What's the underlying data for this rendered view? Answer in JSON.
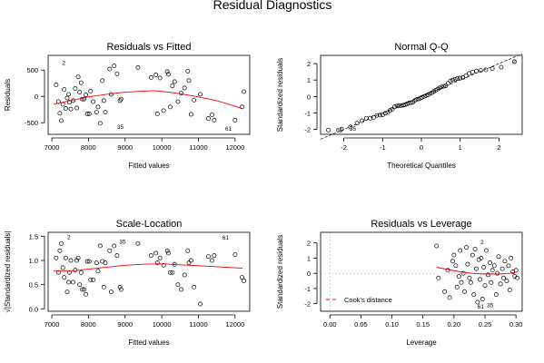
{
  "figure": {
    "title": "Residual Diagnostics"
  },
  "chart_data": [
    {
      "type": "scatter",
      "title": "Residuals vs Fitted",
      "xlabel": "Fitted values",
      "ylabel": "Residuals",
      "xlim": [
        6900,
        12400
      ],
      "ylim": [
        -720,
        780
      ],
      "xticks": [
        7000,
        8000,
        9000,
        10000,
        11000,
        12000
      ],
      "xticklabels": [
        "7000",
        "8000",
        "9000",
        "10000",
        "11000",
        "12000"
      ],
      "yticks": [
        -500,
        0,
        500
      ],
      "yticklabels": [
        "-500",
        "0",
        "500"
      ],
      "points": [
        [
          7120,
          220
        ],
        [
          7180,
          -100
        ],
        [
          7220,
          -320
        ],
        [
          7260,
          -460
        ],
        [
          7300,
          -150
        ],
        [
          7340,
          130
        ],
        [
          7380,
          -230
        ],
        [
          7420,
          -30
        ],
        [
          7460,
          40
        ],
        [
          7480,
          -110
        ],
        [
          7520,
          -240
        ],
        [
          7580,
          -80
        ],
        [
          7640,
          150
        ],
        [
          7680,
          -220
        ],
        [
          7720,
          370
        ],
        [
          7760,
          80
        ],
        [
          7800,
          260
        ],
        [
          7830,
          -50
        ],
        [
          7880,
          -50
        ],
        [
          7930,
          30
        ],
        [
          7970,
          -330
        ],
        [
          8020,
          -330
        ],
        [
          8060,
          100
        ],
        [
          8130,
          -100
        ],
        [
          8220,
          -300
        ],
        [
          8260,
          -200
        ],
        [
          8320,
          -510
        ],
        [
          8380,
          300
        ],
        [
          8420,
          -80
        ],
        [
          8460,
          -300
        ],
        [
          8580,
          520
        ],
        [
          8620,
          40
        ],
        [
          8700,
          580
        ],
        [
          8780,
          430
        ],
        [
          8860,
          -80
        ],
        [
          8890,
          -50
        ],
        [
          9350,
          550
        ],
        [
          9710,
          360
        ],
        [
          9840,
          410
        ],
        [
          9880,
          -330
        ],
        [
          9950,
          350
        ],
        [
          10050,
          -270
        ],
        [
          10150,
          470
        ],
        [
          10180,
          420
        ],
        [
          10230,
          -200
        ],
        [
          10290,
          200
        ],
        [
          10350,
          280
        ],
        [
          10440,
          -100
        ],
        [
          10530,
          60
        ],
        [
          10620,
          160
        ],
        [
          10710,
          480
        ],
        [
          10740,
          300
        ],
        [
          10800,
          -340
        ],
        [
          10880,
          -70
        ],
        [
          11050,
          40
        ],
        [
          11270,
          -420
        ],
        [
          11370,
          -350
        ],
        [
          11430,
          -450
        ],
        [
          12000,
          -450
        ],
        [
          12190,
          -200
        ],
        [
          12240,
          90
        ]
      ],
      "annotations": [
        {
          "label": "2",
          "x": 7230,
          "y": 630
        },
        {
          "label": "35",
          "x": 8730,
          "y": -580
        },
        {
          "label": "61",
          "x": 11680,
          "y": -620
        }
      ],
      "smooth": [
        [
          7050,
          -150
        ],
        [
          7500,
          -80
        ],
        [
          8000,
          -10
        ],
        [
          8500,
          40
        ],
        [
          9000,
          80
        ],
        [
          9500,
          100
        ],
        [
          9800,
          110
        ],
        [
          10200,
          80
        ],
        [
          10600,
          40
        ],
        [
          11000,
          -10
        ],
        [
          11500,
          -80
        ],
        [
          12200,
          -230
        ]
      ]
    },
    {
      "type": "scatter",
      "title": "Normal Q-Q",
      "xlabel": "Theoretical Quantiles",
      "ylabel": "Standardized residuals",
      "xlim": [
        -2.6,
        2.6
      ],
      "ylim": [
        -2.3,
        2.5
      ],
      "xticks": [
        -2,
        -1,
        0,
        1,
        2
      ],
      "xticklabels": [
        "-2",
        "-1",
        "0",
        "1",
        "2"
      ],
      "yticks": [
        -2,
        -1,
        0,
        1,
        2
      ],
      "yticklabels": [
        "-2",
        "-1",
        "0",
        "1",
        "2"
      ],
      "points": [
        [
          -2.4,
          -2.04
        ],
        [
          -2.06,
          -1.98
        ],
        [
          -1.83,
          -1.85
        ],
        [
          -1.66,
          -1.62
        ],
        [
          -1.53,
          -1.47
        ],
        [
          -1.42,
          -1.33
        ],
        [
          -1.32,
          -1.32
        ],
        [
          -1.23,
          -1.27
        ],
        [
          -1.15,
          -1.15
        ],
        [
          -1.07,
          -1.13
        ],
        [
          -1.0,
          -1.12
        ],
        [
          -0.93,
          -1.02
        ],
        [
          -0.87,
          -0.98
        ],
        [
          -0.81,
          -0.85
        ],
        [
          -0.75,
          -0.78
        ],
        [
          -0.69,
          -0.63
        ],
        [
          -0.63,
          -0.58
        ],
        [
          -0.58,
          -0.57
        ],
        [
          -0.52,
          -0.55
        ],
        [
          -0.47,
          -0.53
        ],
        [
          -0.42,
          -0.5
        ],
        [
          -0.37,
          -0.45
        ],
        [
          -0.32,
          -0.4
        ],
        [
          -0.27,
          -0.38
        ],
        [
          -0.22,
          -0.35
        ],
        [
          -0.17,
          -0.25
        ],
        [
          -0.12,
          -0.18
        ],
        [
          -0.07,
          -0.15
        ],
        [
          -0.02,
          -0.1
        ],
        [
          0.02,
          -0.05
        ],
        [
          0.07,
          0.0
        ],
        [
          0.12,
          0.05
        ],
        [
          0.17,
          0.1
        ],
        [
          0.22,
          0.18
        ],
        [
          0.27,
          0.22
        ],
        [
          0.32,
          0.3
        ],
        [
          0.37,
          0.38
        ],
        [
          0.42,
          0.45
        ],
        [
          0.47,
          0.52
        ],
        [
          0.52,
          0.58
        ],
        [
          0.58,
          0.62
        ],
        [
          0.63,
          0.65
        ],
        [
          0.69,
          0.8
        ],
        [
          0.75,
          0.95
        ],
        [
          0.81,
          1.0
        ],
        [
          0.87,
          1.05
        ],
        [
          0.93,
          1.1
        ],
        [
          1.0,
          1.12
        ],
        [
          1.07,
          1.15
        ],
        [
          1.15,
          1.25
        ],
        [
          1.23,
          1.4
        ],
        [
          1.32,
          1.48
        ],
        [
          1.42,
          1.55
        ],
        [
          1.53,
          1.58
        ],
        [
          1.66,
          1.62
        ],
        [
          1.83,
          1.7
        ],
        [
          2.06,
          1.78
        ],
        [
          2.4,
          2.12
        ]
      ],
      "annotations": [
        {
          "label": "61",
          "x": -2.25,
          "y": -2.05
        },
        {
          "label": "35",
          "x": -1.9,
          "y": -1.97
        },
        {
          "label": "2",
          "x": 2.3,
          "y": 2.12
        }
      ],
      "reference_line": [
        [
          -2.6,
          -2.6
        ],
        [
          2.6,
          2.6
        ]
      ]
    },
    {
      "type": "scatter",
      "title": "Scale-Location",
      "xlabel": "Fitted values",
      "ylabel": "√|Standardized residuals|",
      "xlim": [
        6900,
        12400
      ],
      "ylim": [
        -0.05,
        1.58
      ],
      "xticks": [
        7000,
        8000,
        9000,
        10000,
        11000,
        12000
      ],
      "xticklabels": [
        "7000",
        "8000",
        "9000",
        "10000",
        "11000",
        "12000"
      ],
      "yticks": [
        0.0,
        0.5,
        1.0,
        1.5
      ],
      "yticklabels": [
        "0.0",
        "0.5",
        "1.0",
        "1.5"
      ],
      "points": [
        [
          7120,
          1.05
        ],
        [
          7180,
          0.75
        ],
        [
          7220,
          1.2
        ],
        [
          7260,
          1.35
        ],
        [
          7300,
          0.85
        ],
        [
          7340,
          0.65
        ],
        [
          7380,
          1.05
        ],
        [
          7420,
          0.35
        ],
        [
          7460,
          0.55
        ],
        [
          7480,
          0.75
        ],
        [
          7520,
          1.0
        ],
        [
          7580,
          0.55
        ],
        [
          7640,
          0.8
        ],
        [
          7680,
          1.0
        ],
        [
          7720,
          1.05
        ],
        [
          7760,
          0.5
        ],
        [
          7800,
          0.75
        ],
        [
          7830,
          0.4
        ],
        [
          7880,
          0.4
        ],
        [
          7930,
          0.3
        ],
        [
          7970,
          0.98
        ],
        [
          8020,
          0.98
        ],
        [
          8060,
          0.6
        ],
        [
          8130,
          0.6
        ],
        [
          8220,
          0.95
        ],
        [
          8260,
          0.78
        ],
        [
          8320,
          1.3
        ],
        [
          8380,
          0.98
        ],
        [
          8420,
          0.45
        ],
        [
          8460,
          0.95
        ],
        [
          8580,
          1.2
        ],
        [
          8620,
          0.35
        ],
        [
          8700,
          1.3
        ],
        [
          8780,
          1.1
        ],
        [
          8860,
          0.45
        ],
        [
          8890,
          0.4
        ],
        [
          9350,
          1.35
        ],
        [
          9710,
          1.1
        ],
        [
          9840,
          1.15
        ],
        [
          9880,
          0.95
        ],
        [
          9950,
          1.05
        ],
        [
          10050,
          0.9
        ],
        [
          10150,
          1.2
        ],
        [
          10180,
          1.15
        ],
        [
          10230,
          0.75
        ],
        [
          10290,
          0.75
        ],
        [
          10350,
          0.92
        ],
        [
          10440,
          0.5
        ],
        [
          10530,
          0.4
        ],
        [
          10620,
          0.7
        ],
        [
          10710,
          1.2
        ],
        [
          10740,
          0.95
        ],
        [
          10800,
          1.0
        ],
        [
          10880,
          0.45
        ],
        [
          11050,
          0.1
        ],
        [
          11270,
          1.08
        ],
        [
          11370,
          1.0
        ],
        [
          11430,
          1.1
        ],
        [
          12000,
          1.12
        ],
        [
          12190,
          0.65
        ],
        [
          12240,
          0.58
        ]
      ],
      "annotations": [
        {
          "label": "2",
          "x": 7370,
          "y": 1.48
        },
        {
          "label": "35",
          "x": 8790,
          "y": 1.38
        },
        {
          "label": "61",
          "x": 11600,
          "y": 1.47
        }
      ],
      "smooth": [
        [
          7050,
          0.78
        ],
        [
          7500,
          0.78
        ],
        [
          8000,
          0.82
        ],
        [
          8500,
          0.86
        ],
        [
          9000,
          0.9
        ],
        [
          9500,
          0.92
        ],
        [
          10000,
          0.93
        ],
        [
          10500,
          0.91
        ],
        [
          11000,
          0.89
        ],
        [
          11500,
          0.87
        ],
        [
          12200,
          0.84
        ]
      ]
    },
    {
      "type": "scatter",
      "title": "Residuals vs Leverage",
      "xlabel": "Leverage",
      "ylabel": "Standardized residuals",
      "xlim": [
        -0.015,
        0.31
      ],
      "ylim": [
        -2.5,
        2.7
      ],
      "xticks": [
        0.0,
        0.05,
        0.1,
        0.15,
        0.2,
        0.25,
        0.3
      ],
      "xticklabels": [
        "0.00",
        "0.05",
        "0.10",
        "0.15",
        "0.20",
        "0.25",
        "0.30"
      ],
      "yticks": [
        -2,
        -1,
        0,
        1,
        2
      ],
      "yticklabels": [
        "-2",
        "-1",
        "0",
        "1",
        "2"
      ],
      "points": [
        [
          0.172,
          1.8
        ],
        [
          0.175,
          -0.3
        ],
        [
          0.185,
          -1.2
        ],
        [
          0.19,
          0.2
        ],
        [
          0.193,
          -1.6
        ],
        [
          0.198,
          0.8
        ],
        [
          0.2,
          1.2
        ],
        [
          0.203,
          0.5
        ],
        [
          0.205,
          -0.9
        ],
        [
          0.208,
          -0.2
        ],
        [
          0.21,
          1.5
        ],
        [
          0.212,
          -0.6
        ],
        [
          0.215,
          0.0
        ],
        [
          0.217,
          -1.2
        ],
        [
          0.22,
          1.7
        ],
        [
          0.222,
          0.6
        ],
        [
          0.225,
          -0.3
        ],
        [
          0.227,
          -0.6
        ],
        [
          0.23,
          1.2
        ],
        [
          0.232,
          -1.4
        ],
        [
          0.234,
          1.6
        ],
        [
          0.236,
          0.3
        ],
        [
          0.238,
          -1.9
        ],
        [
          0.24,
          0.9
        ],
        [
          0.242,
          -0.4
        ],
        [
          0.244,
          1.0
        ],
        [
          0.246,
          -1.7
        ],
        [
          0.248,
          0.4
        ],
        [
          0.25,
          -0.8
        ],
        [
          0.252,
          1.5
        ],
        [
          0.255,
          -0.1
        ],
        [
          0.258,
          0.7
        ],
        [
          0.26,
          -0.6
        ],
        [
          0.262,
          0.2
        ],
        [
          0.265,
          0.5
        ],
        [
          0.268,
          -1.4
        ],
        [
          0.27,
          0.0
        ],
        [
          0.272,
          1.1
        ],
        [
          0.275,
          -0.7
        ],
        [
          0.278,
          0.3
        ],
        [
          0.28,
          -0.3
        ],
        [
          0.282,
          0.8
        ],
        [
          0.285,
          -0.5
        ],
        [
          0.288,
          0.5
        ],
        [
          0.29,
          -1.1
        ],
        [
          0.292,
          1.0
        ],
        [
          0.295,
          0.1
        ],
        [
          0.298,
          -0.2
        ],
        [
          0.3,
          0.2
        ],
        [
          0.302,
          -0.3
        ]
      ],
      "annotations": [
        {
          "label": "2",
          "x": 0.24,
          "y": 2.05
        },
        {
          "label": "61",
          "x": 0.235,
          "y": -2.2
        },
        {
          "label": "35",
          "x": 0.25,
          "y": -2.1
        }
      ],
      "smooth": [
        [
          0.172,
          0.4
        ],
        [
          0.19,
          0.25
        ],
        [
          0.21,
          0.1
        ],
        [
          0.23,
          0.0
        ],
        [
          0.25,
          -0.05
        ],
        [
          0.27,
          -0.05
        ],
        [
          0.29,
          0.0
        ],
        [
          0.302,
          0.1
        ]
      ],
      "legend": {
        "label": "Cook's distance",
        "position": "bottom-left"
      }
    }
  ]
}
